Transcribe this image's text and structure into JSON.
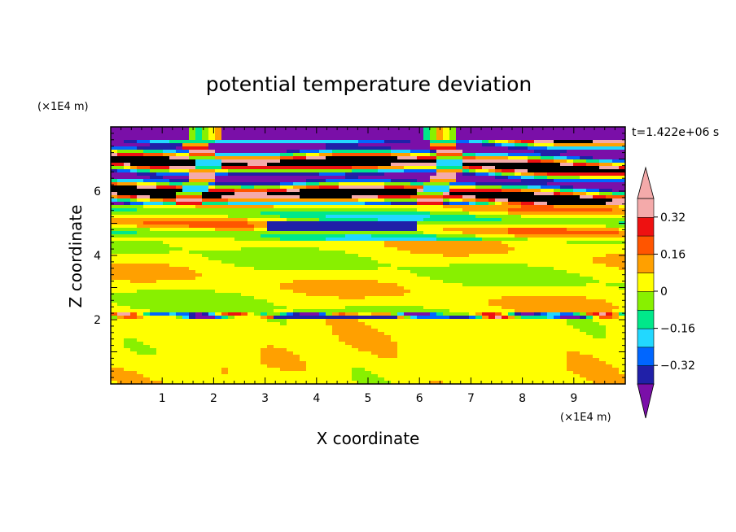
{
  "chart_data": {
    "type": "heatmap",
    "title": "potential temperature deviation",
    "xlabel": "X coordinate",
    "ylabel": "Z coordinate",
    "x_unit": "(×1E4 m)",
    "y_unit": "(×1E4 m)",
    "time_label": "t=1.422e+06 s",
    "xlim": [
      0,
      10
    ],
    "ylim": [
      0,
      8
    ],
    "x_ticks": [
      "1",
      "2",
      "3",
      "4",
      "5",
      "6",
      "7",
      "8",
      "9"
    ],
    "y_ticks": [
      "2",
      "4",
      "6"
    ],
    "colorbar": {
      "levels": [
        -0.4,
        -0.32,
        -0.24,
        -0.16,
        -0.08,
        0,
        0.08,
        0.16,
        0.24,
        0.32,
        0.4
      ],
      "tick_labels": [
        "0.32",
        "0.16",
        "0",
        "−0.16",
        "−0.32"
      ],
      "colors": [
        "#7a0fa8",
        "#2020a8",
        "#0066ff",
        "#22d8ff",
        "#00e88a",
        "#88f000",
        "#ffff00",
        "#ffa000",
        "#ff5500",
        "#ee1111",
        "#f4aaaa"
      ]
    }
  }
}
